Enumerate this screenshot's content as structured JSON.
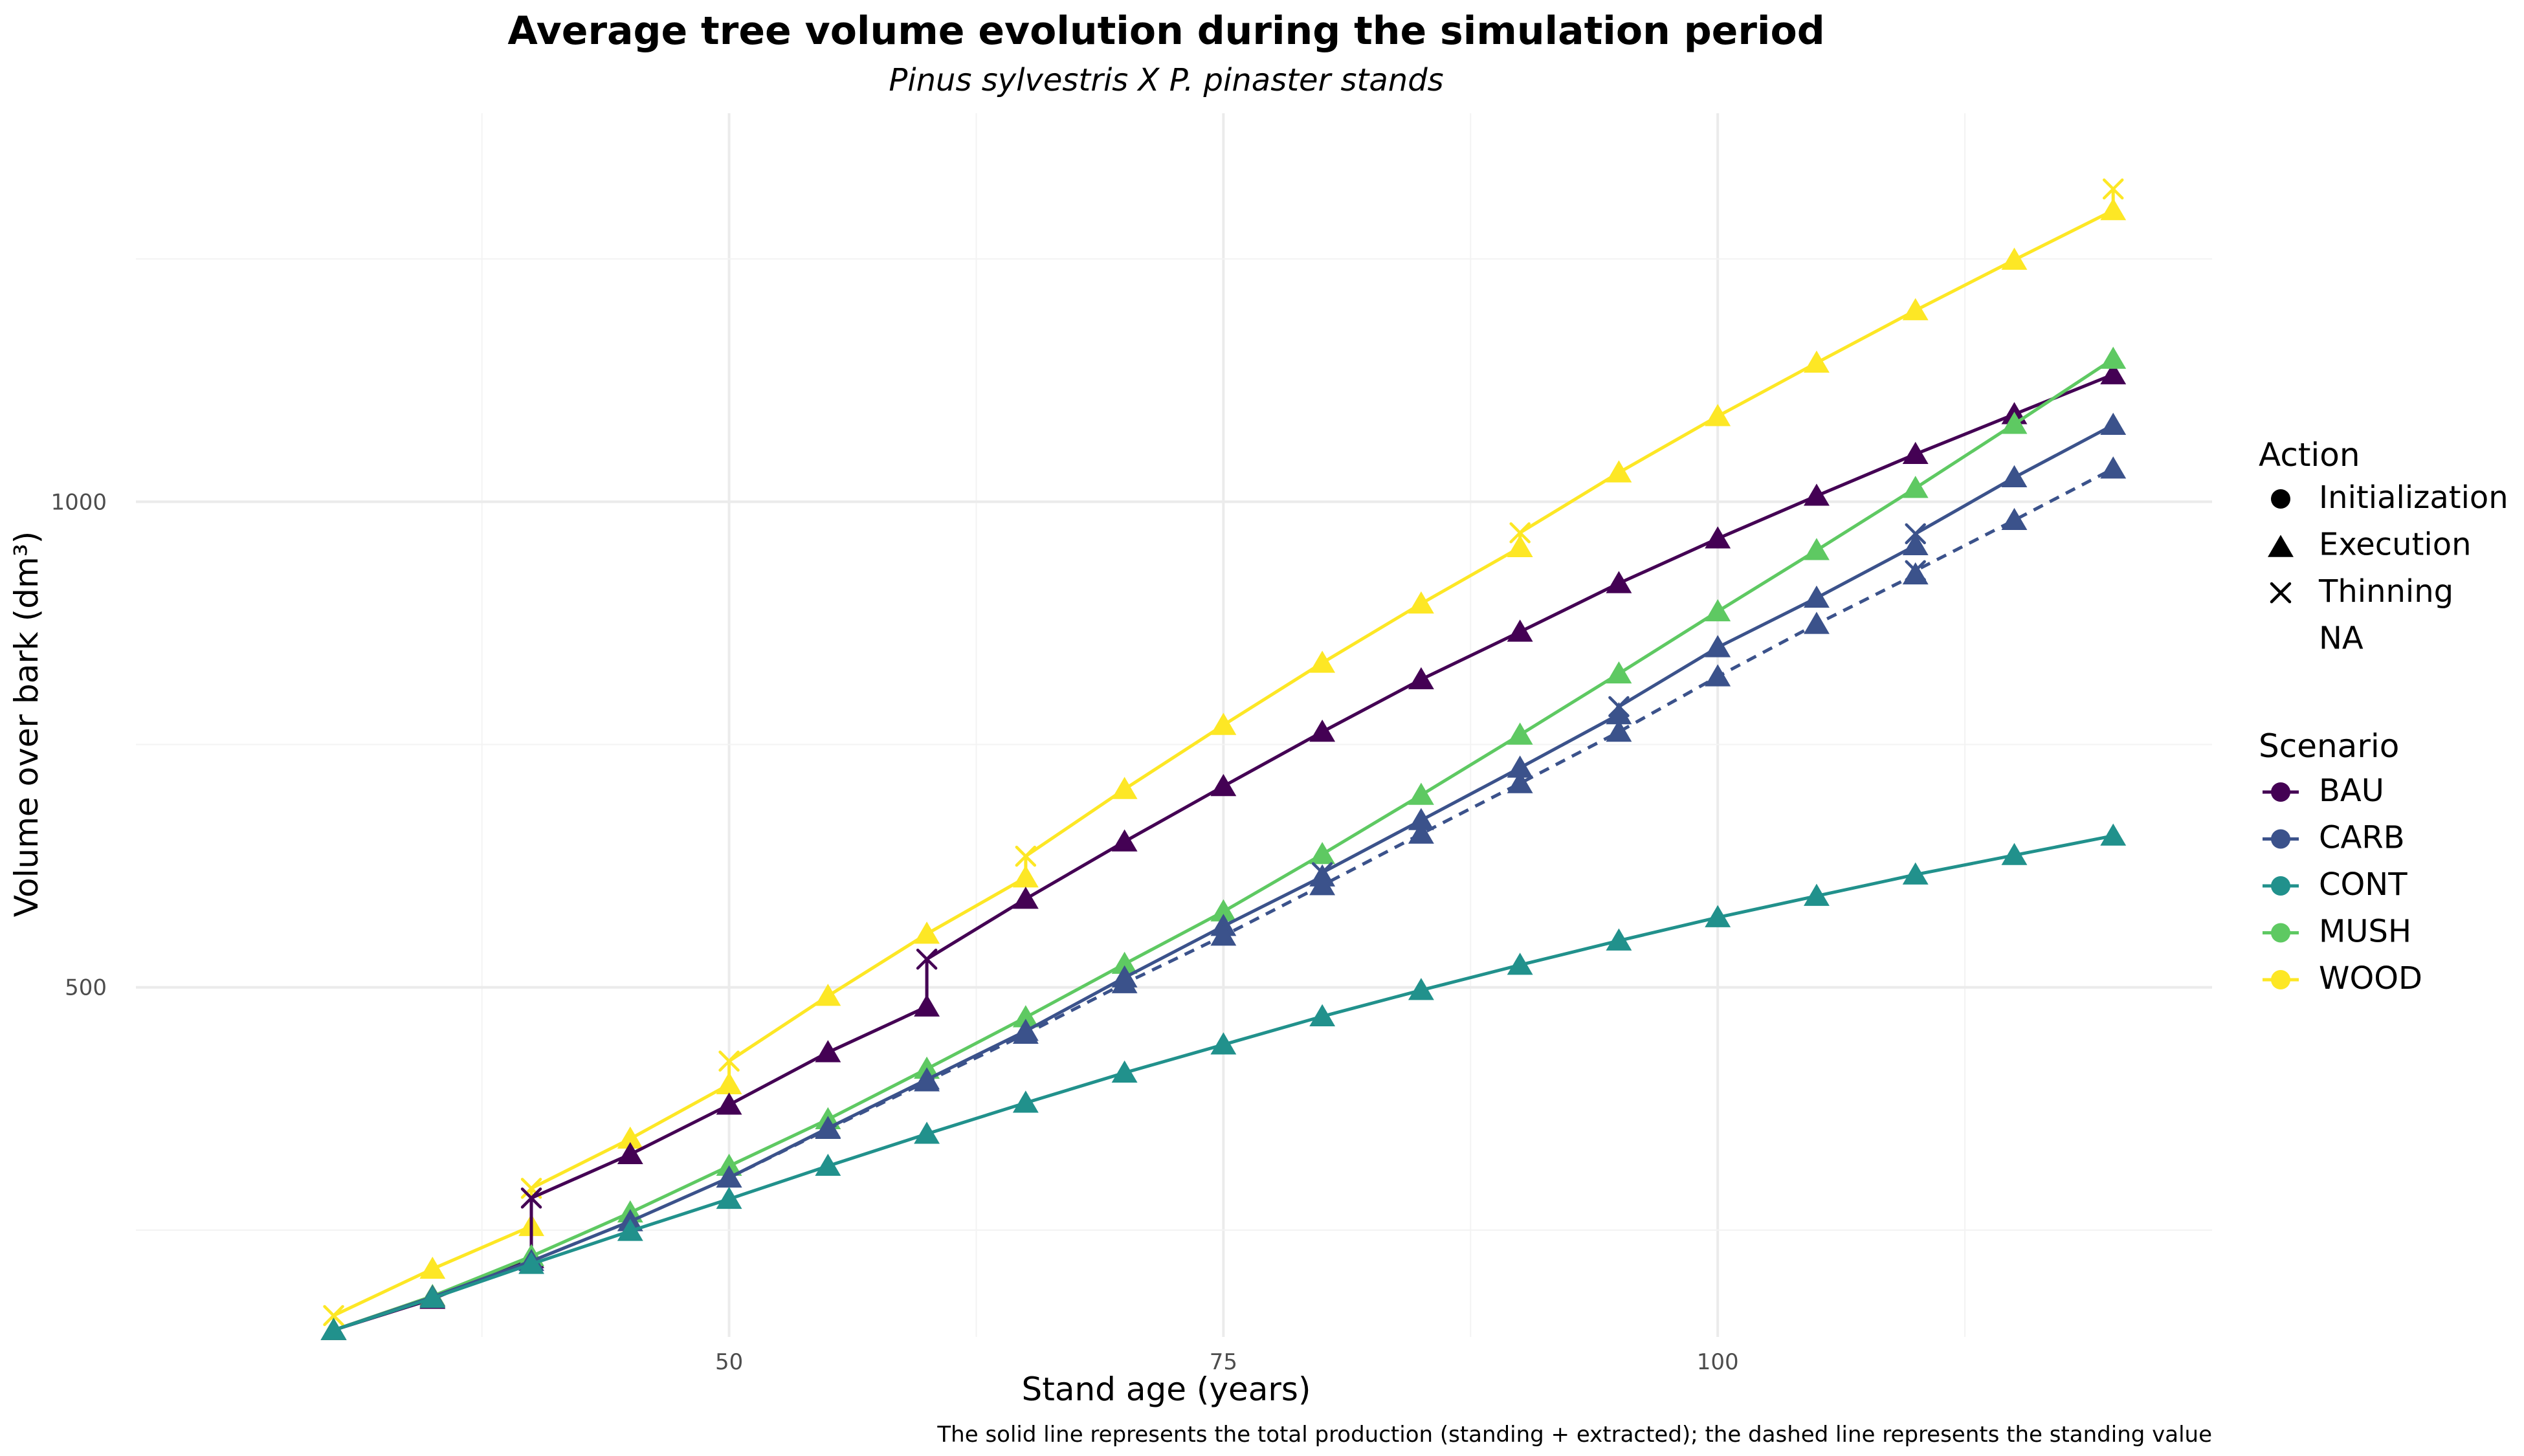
{
  "chart_data": {
    "type": "line",
    "title": "Average tree volume evolution during the simulation period",
    "subtitle": "Pinus sylvestris X P. pinaster stands",
    "xlabel": "Stand age (years)",
    "ylabel": "Volume over bark (dm³)",
    "caption": "The solid line represents the total production (standing + extracted); the dashed line represents the standing value",
    "xlim": [
      20,
      125
    ],
    "ylim": [
      140,
      1400
    ],
    "x_ticks": [
      50,
      75,
      100
    ],
    "x_tick_labels": [
      "50",
      "75",
      "100"
    ],
    "y_ticks": [
      500,
      1000
    ],
    "y_tick_labels": [
      "500",
      "1000"
    ],
    "grid": true,
    "legend_position": "right",
    "legend": {
      "action_title": "Action",
      "action_items": [
        {
          "label": "Initialization",
          "shape": "circle"
        },
        {
          "label": "Execution",
          "shape": "triangle"
        },
        {
          "label": "Thinning",
          "shape": "cross"
        },
        {
          "label": "NA",
          "shape": "none"
        }
      ],
      "scenario_title": "Scenario",
      "scenario_items": [
        {
          "label": "BAU",
          "color": "#440154"
        },
        {
          "label": "CARB",
          "color": "#3b528b"
        },
        {
          "label": "CONT",
          "color": "#21918c"
        },
        {
          "label": "MUSH",
          "color": "#5ec962"
        },
        {
          "label": "WOOD",
          "color": "#fde725"
        }
      ]
    },
    "series": [
      {
        "name": "WOOD",
        "color": "#fde725",
        "linestyle": "solid",
        "points": [
          {
            "x": 30,
            "y": 147,
            "shape": "triangle"
          },
          {
            "x": 30,
            "y": 162,
            "shape": "cross"
          },
          {
            "x": 35,
            "y": 210,
            "shape": "triangle"
          },
          {
            "x": 40,
            "y": 254,
            "shape": "triangle"
          },
          {
            "x": 40,
            "y": 293,
            "shape": "cross"
          },
          {
            "x": 45,
            "y": 344,
            "shape": "triangle"
          },
          {
            "x": 50,
            "y": 400,
            "shape": "triangle"
          },
          {
            "x": 50,
            "y": 424,
            "shape": "cross"
          },
          {
            "x": 55,
            "y": 491,
            "shape": "triangle"
          },
          {
            "x": 60,
            "y": 555,
            "shape": "triangle"
          },
          {
            "x": 65,
            "y": 613,
            "shape": "triangle"
          },
          {
            "x": 65,
            "y": 635,
            "shape": "cross"
          },
          {
            "x": 70,
            "y": 704,
            "shape": "triangle"
          },
          {
            "x": 75,
            "y": 770,
            "shape": "triangle"
          },
          {
            "x": 80,
            "y": 834,
            "shape": "triangle"
          },
          {
            "x": 85,
            "y": 895,
            "shape": "triangle"
          },
          {
            "x": 90,
            "y": 953,
            "shape": "triangle"
          },
          {
            "x": 90,
            "y": 968,
            "shape": "cross"
          },
          {
            "x": 95,
            "y": 1030,
            "shape": "triangle"
          },
          {
            "x": 100,
            "y": 1088,
            "shape": "triangle"
          },
          {
            "x": 105,
            "y": 1143,
            "shape": "triangle"
          },
          {
            "x": 110,
            "y": 1197,
            "shape": "triangle"
          },
          {
            "x": 115,
            "y": 1249,
            "shape": "triangle"
          },
          {
            "x": 120,
            "y": 1300,
            "shape": "triangle"
          },
          {
            "x": 120,
            "y": 1322,
            "shape": "cross"
          }
        ]
      },
      {
        "name": "BAU",
        "color": "#440154",
        "linestyle": "solid",
        "points": [
          {
            "x": 30,
            "y": 147,
            "shape": "triangle"
          },
          {
            "x": 35,
            "y": 179,
            "shape": "triangle"
          },
          {
            "x": 40,
            "y": 221,
            "shape": "triangle"
          },
          {
            "x": 40,
            "y": 283,
            "shape": "cross"
          },
          {
            "x": 45,
            "y": 328,
            "shape": "triangle"
          },
          {
            "x": 50,
            "y": 379,
            "shape": "triangle"
          },
          {
            "x": 55,
            "y": 433,
            "shape": "triangle"
          },
          {
            "x": 60,
            "y": 480,
            "shape": "triangle"
          },
          {
            "x": 60,
            "y": 529,
            "shape": "cross"
          },
          {
            "x": 65,
            "y": 591,
            "shape": "triangle"
          },
          {
            "x": 70,
            "y": 650,
            "shape": "triangle"
          },
          {
            "x": 75,
            "y": 707,
            "shape": "triangle"
          },
          {
            "x": 80,
            "y": 763,
            "shape": "triangle"
          },
          {
            "x": 85,
            "y": 817,
            "shape": "triangle"
          },
          {
            "x": 90,
            "y": 866,
            "shape": "triangle"
          },
          {
            "x": 95,
            "y": 916,
            "shape": "triangle"
          },
          {
            "x": 100,
            "y": 962,
            "shape": "triangle"
          },
          {
            "x": 105,
            "y": 1006,
            "shape": "triangle"
          },
          {
            "x": 110,
            "y": 1049,
            "shape": "triangle"
          },
          {
            "x": 115,
            "y": 1090,
            "shape": "triangle"
          },
          {
            "x": 120,
            "y": 1131,
            "shape": "triangle"
          }
        ]
      },
      {
        "name": "MUSH",
        "color": "#5ec962",
        "linestyle": "solid",
        "points": [
          {
            "x": 30,
            "y": 147,
            "shape": "triangle"
          },
          {
            "x": 35,
            "y": 182,
            "shape": "triangle"
          },
          {
            "x": 40,
            "y": 223,
            "shape": "triangle"
          },
          {
            "x": 45,
            "y": 268,
            "shape": "triangle"
          },
          {
            "x": 50,
            "y": 316,
            "shape": "triangle"
          },
          {
            "x": 55,
            "y": 364,
            "shape": "triangle"
          },
          {
            "x": 60,
            "y": 416,
            "shape": "triangle"
          },
          {
            "x": 65,
            "y": 469,
            "shape": "triangle"
          },
          {
            "x": 70,
            "y": 524,
            "shape": "triangle"
          },
          {
            "x": 75,
            "y": 578,
            "shape": "triangle"
          },
          {
            "x": 80,
            "y": 637,
            "shape": "triangle"
          },
          {
            "x": 85,
            "y": 698,
            "shape": "triangle"
          },
          {
            "x": 90,
            "y": 760,
            "shape": "triangle"
          },
          {
            "x": 95,
            "y": 823,
            "shape": "triangle"
          },
          {
            "x": 100,
            "y": 887,
            "shape": "triangle"
          },
          {
            "x": 105,
            "y": 950,
            "shape": "triangle"
          },
          {
            "x": 110,
            "y": 1014,
            "shape": "triangle"
          },
          {
            "x": 115,
            "y": 1080,
            "shape": "triangle"
          },
          {
            "x": 120,
            "y": 1147,
            "shape": "triangle"
          }
        ]
      },
      {
        "name": "CARB",
        "color": "#3b528b",
        "linestyle": "solid",
        "points": [
          {
            "x": 30,
            "y": 147,
            "shape": "triangle"
          },
          {
            "x": 35,
            "y": 181,
            "shape": "triangle"
          },
          {
            "x": 40,
            "y": 218,
            "shape": "triangle"
          },
          {
            "x": 45,
            "y": 259,
            "shape": "triangle"
          },
          {
            "x": 50,
            "y": 304,
            "shape": "triangle"
          },
          {
            "x": 55,
            "y": 355,
            "shape": "triangle"
          },
          {
            "x": 60,
            "y": 405,
            "shape": "triangle"
          },
          {
            "x": 65,
            "y": 455,
            "shape": "triangle"
          },
          {
            "x": 70,
            "y": 510,
            "shape": "triangle"
          },
          {
            "x": 75,
            "y": 563,
            "shape": "triangle"
          },
          {
            "x": 80,
            "y": 614,
            "shape": "triangle"
          },
          {
            "x": 80,
            "y": 618,
            "shape": "cross"
          },
          {
            "x": 85,
            "y": 672,
            "shape": "triangle"
          },
          {
            "x": 90,
            "y": 726,
            "shape": "triangle"
          },
          {
            "x": 95,
            "y": 781,
            "shape": "triangle"
          },
          {
            "x": 95,
            "y": 789,
            "shape": "cross"
          },
          {
            "x": 100,
            "y": 850,
            "shape": "triangle"
          },
          {
            "x": 105,
            "y": 901,
            "shape": "triangle"
          },
          {
            "x": 110,
            "y": 955,
            "shape": "triangle"
          },
          {
            "x": 110,
            "y": 967,
            "shape": "cross"
          },
          {
            "x": 115,
            "y": 1025,
            "shape": "triangle"
          },
          {
            "x": 120,
            "y": 1079,
            "shape": "triangle"
          }
        ]
      },
      {
        "name": "CARB",
        "color": "#3b528b",
        "linestyle": "dashed",
        "points": [
          {
            "x": 50,
            "y": 304,
            "shape": "triangle"
          },
          {
            "x": 55,
            "y": 354,
            "shape": "triangle"
          },
          {
            "x": 60,
            "y": 403,
            "shape": "triangle"
          },
          {
            "x": 65,
            "y": 452,
            "shape": "triangle"
          },
          {
            "x": 70,
            "y": 504,
            "shape": "triangle"
          },
          {
            "x": 75,
            "y": 553,
            "shape": "triangle"
          },
          {
            "x": 80,
            "y": 605,
            "shape": "triangle"
          },
          {
            "x": 85,
            "y": 658,
            "shape": "triangle"
          },
          {
            "x": 90,
            "y": 710,
            "shape": "triangle"
          },
          {
            "x": 95,
            "y": 763,
            "shape": "triangle"
          },
          {
            "x": 100,
            "y": 820,
            "shape": "triangle"
          },
          {
            "x": 105,
            "y": 874,
            "shape": "triangle"
          },
          {
            "x": 110,
            "y": 925,
            "shape": "triangle"
          },
          {
            "x": 110,
            "y": 929,
            "shape": "cross"
          },
          {
            "x": 115,
            "y": 981,
            "shape": "triangle"
          },
          {
            "x": 120,
            "y": 1034,
            "shape": "triangle"
          }
        ]
      },
      {
        "name": "CONT",
        "color": "#21918c",
        "linestyle": "solid",
        "points": [
          {
            "x": 30,
            "y": 147,
            "shape": "triangle"
          },
          {
            "x": 35,
            "y": 180,
            "shape": "triangle"
          },
          {
            "x": 40,
            "y": 215,
            "shape": "triangle"
          },
          {
            "x": 45,
            "y": 249,
            "shape": "triangle"
          },
          {
            "x": 50,
            "y": 282,
            "shape": "triangle"
          },
          {
            "x": 55,
            "y": 316,
            "shape": "triangle"
          },
          {
            "x": 60,
            "y": 349,
            "shape": "triangle"
          },
          {
            "x": 65,
            "y": 381,
            "shape": "triangle"
          },
          {
            "x": 70,
            "y": 412,
            "shape": "triangle"
          },
          {
            "x": 75,
            "y": 441,
            "shape": "triangle"
          },
          {
            "x": 80,
            "y": 470,
            "shape": "triangle"
          },
          {
            "x": 85,
            "y": 497,
            "shape": "triangle"
          },
          {
            "x": 90,
            "y": 523,
            "shape": "triangle"
          },
          {
            "x": 95,
            "y": 548,
            "shape": "triangle"
          },
          {
            "x": 100,
            "y": 572,
            "shape": "triangle"
          },
          {
            "x": 105,
            "y": 594,
            "shape": "triangle"
          },
          {
            "x": 110,
            "y": 616,
            "shape": "triangle"
          },
          {
            "x": 115,
            "y": 636,
            "shape": "triangle"
          },
          {
            "x": 120,
            "y": 656,
            "shape": "triangle"
          }
        ]
      }
    ]
  }
}
